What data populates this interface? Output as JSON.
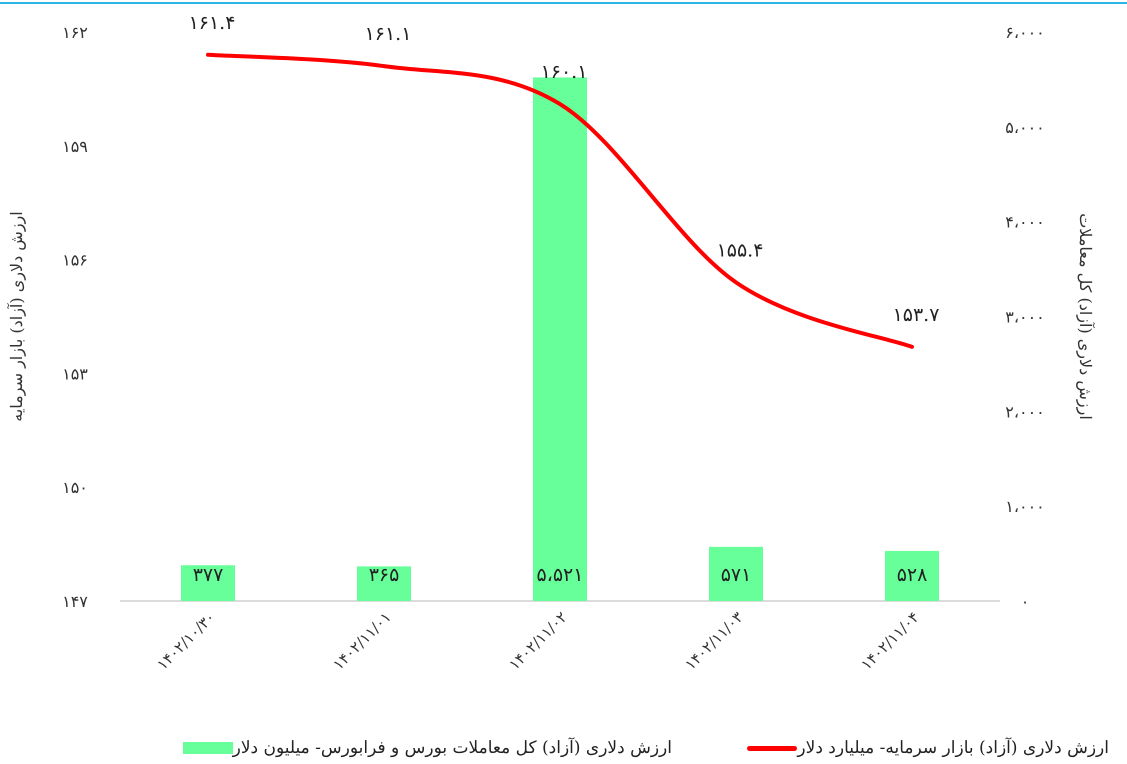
{
  "colors": {
    "bar": "#66ff99",
    "line": "#ff0000",
    "top_rule": "#29b6e6",
    "axis": "#d0d0d0"
  },
  "chart_data": {
    "type": "bar",
    "categories": [
      "۱۴۰۲/۱۰/۳۰",
      "۱۴۰۲/۱۱/۰۱",
      "۱۴۰۲/۱۱/۰۲",
      "۱۴۰۲/۱۱/۰۳",
      "۱۴۰۲/۱۱/۰۴"
    ],
    "series": [
      {
        "name": "ارزش دلاری (آزاد) کل معاملات بورس و فرابورس- میلیون دلار",
        "type": "bar",
        "axis": "right",
        "values": [
          377,
          365,
          5521,
          571,
          528
        ],
        "labels": [
          "۳۷۷",
          "۳۶۵",
          "۵،۵۲۱",
          "۵۷۱",
          "۵۲۸"
        ]
      },
      {
        "name": "ارزش دلاری (آزاد) بازار سرمایه- میلیارد دلار",
        "type": "line",
        "axis": "left",
        "smooth": true,
        "values": [
          161.4,
          161.1,
          160.1,
          155.4,
          153.7
        ],
        "labels": [
          "۱۶۱.۴",
          "۱۶۱.۱",
          "۱۶۰.۱",
          "۱۵۵.۴",
          "۱۵۳.۷"
        ]
      }
    ],
    "y_left": {
      "label": "ارزش دلاری (آزاد) بازار سرمایه",
      "range": [
        147,
        162
      ],
      "ticks": [
        147,
        150,
        153,
        156,
        159,
        162
      ],
      "tick_labels": [
        "۱۴۷",
        "۱۵۰",
        "۱۵۳",
        "۱۵۶",
        "۱۵۹",
        "۱۶۲"
      ]
    },
    "y_right": {
      "label": "ارزش دلاری (آزاد) کل معاملات",
      "range": [
        0,
        6000
      ],
      "ticks": [
        0,
        1000,
        2000,
        3000,
        4000,
        5000,
        6000
      ],
      "tick_labels": [
        "۰",
        "۱،۰۰۰",
        "۲،۰۰۰",
        "۳،۰۰۰",
        "۴،۰۰۰",
        "۵،۰۰۰",
        "۶،۰۰۰"
      ]
    },
    "grid": false,
    "legend_position": "bottom"
  }
}
